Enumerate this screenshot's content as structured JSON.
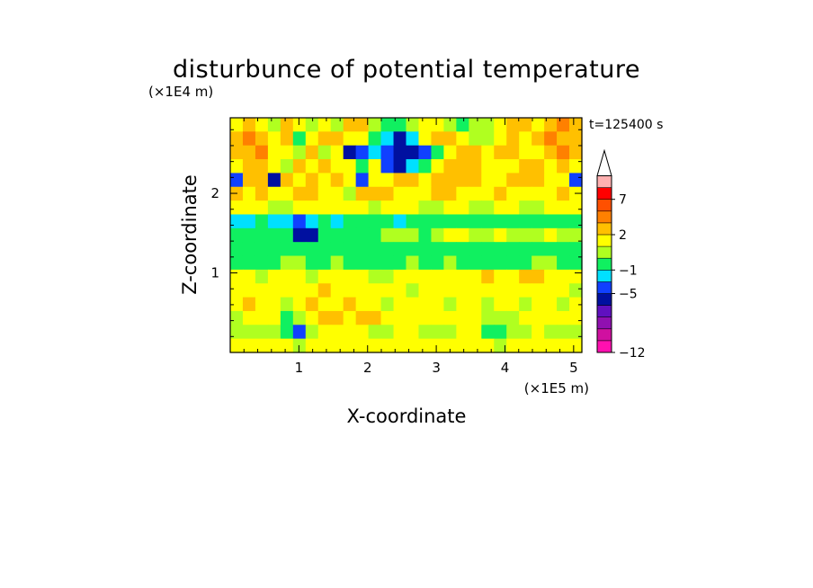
{
  "chart_data": {
    "type": "heatmap",
    "title": "disturbunce of potential temperature",
    "time_label": "t=125400 s",
    "xlabel": "X-coordinate",
    "ylabel": "Z-coordinate",
    "x_unit": "(×1E5 m)",
    "y_unit": "(×1E4 m)",
    "xlim": [
      0,
      5.12
    ],
    "ylim": [
      0,
      2.95
    ],
    "x_ticks": [
      {
        "value": 1,
        "label": "1"
      },
      {
        "value": 2,
        "label": "2"
      },
      {
        "value": 3,
        "label": "3"
      },
      {
        "value": 4,
        "label": "4"
      },
      {
        "value": 5,
        "label": "5"
      }
    ],
    "y_ticks": [
      {
        "value": 1,
        "label": "1"
      },
      {
        "value": 2,
        "label": "2"
      }
    ],
    "grid": false,
    "legend_position": "right",
    "colorbar": {
      "colors": [
        "#ff10b0",
        "#d010a0",
        "#9010b0",
        "#6010c0",
        "#0010a0",
        "#1040ff",
        "#00e0ff",
        "#10f060",
        "#b0ff20",
        "#ffff00",
        "#ffc000",
        "#ff8000",
        "#ff5000",
        "#ff0000",
        "#ffb0b0"
      ],
      "extend_max": true,
      "labels": [
        {
          "value": "−12",
          "index": 0
        },
        {
          "value": "−5",
          "index": 5
        },
        {
          "value": "−1",
          "index": 7
        },
        {
          "value": "2",
          "index": 10
        },
        {
          "value": "7",
          "index": 13
        }
      ]
    },
    "rows": [
      [
        "#ffff00",
        "#ffc000",
        "#ffff00",
        "#b0ff20",
        "#ffc000",
        "#ffff00",
        "#b0ff20",
        "#ffff00",
        "#b0ff20",
        "#ffc000",
        "#ffc000",
        "#b0ff20",
        "#10f060",
        "#10f060",
        "#b0ff20",
        "#ffff00",
        "#ffff00",
        "#b0ff20",
        "#10f060",
        "#b0ff20",
        "#b0ff20",
        "#ffff00",
        "#ffc000",
        "#ffc000",
        "#ffff00",
        "#ffc000",
        "#ff8000",
        "#ffc000"
      ],
      [
        "#ffc000",
        "#ff8000",
        "#ffc000",
        "#ffff00",
        "#ffc000",
        "#10f060",
        "#ffff00",
        "#ffc000",
        "#ffc000",
        "#ffff00",
        "#ffff00",
        "#10f060",
        "#00e0ff",
        "#0010a0",
        "#00e0ff",
        "#ffff00",
        "#ffc000",
        "#ffc000",
        "#ffff00",
        "#b0ff20",
        "#b0ff20",
        "#ffff00",
        "#ffc000",
        "#ffff00",
        "#ffc000",
        "#ff8000",
        "#ffc000",
        "#ffc000"
      ],
      [
        "#ffc000",
        "#ffc000",
        "#ff8000",
        "#ffff00",
        "#ffff00",
        "#b0ff20",
        "#ffc000",
        "#b0ff20",
        "#ffff00",
        "#0010a0",
        "#1040ff",
        "#00e0ff",
        "#1040ff",
        "#0010a0",
        "#0010a0",
        "#1040ff",
        "#10f060",
        "#ffff00",
        "#ffc000",
        "#ffc000",
        "#ffff00",
        "#ffc000",
        "#ffc000",
        "#ffff00",
        "#ffff00",
        "#ffc000",
        "#ff8000",
        "#ffc000"
      ],
      [
        "#ffff00",
        "#ffc000",
        "#ffc000",
        "#ffff00",
        "#b0ff20",
        "#ffc000",
        "#ffff00",
        "#ffc000",
        "#ffff00",
        "#ffff00",
        "#10f060",
        "#ffff00",
        "#1040ff",
        "#0010a0",
        "#00e0ff",
        "#10f060",
        "#ffff00",
        "#ffc000",
        "#ffc000",
        "#ffc000",
        "#ffff00",
        "#ffff00",
        "#ffff00",
        "#ffc000",
        "#ffc000",
        "#ffff00",
        "#ffc000",
        "#ffff00"
      ],
      [
        "#1040ff",
        "#ffc000",
        "#ffc000",
        "#0010a0",
        "#ffc000",
        "#ffff00",
        "#ffc000",
        "#ffff00",
        "#ffc000",
        "#ffff00",
        "#1040ff",
        "#ffff00",
        "#ffff00",
        "#ffc000",
        "#ffc000",
        "#ffff00",
        "#ffc000",
        "#ffc000",
        "#ffc000",
        "#ffc000",
        "#ffff00",
        "#ffff00",
        "#ffc000",
        "#ffc000",
        "#ffc000",
        "#ffff00",
        "#ffff00",
        "#1040ff"
      ],
      [
        "#ffc000",
        "#ffff00",
        "#ffc000",
        "#ffff00",
        "#ffff00",
        "#ffc000",
        "#ffc000",
        "#ffff00",
        "#ffff00",
        "#b0ff20",
        "#ffc000",
        "#ffc000",
        "#ffc000",
        "#ffff00",
        "#ffff00",
        "#ffff00",
        "#ffc000",
        "#ffc000",
        "#ffff00",
        "#ffff00",
        "#ffff00",
        "#ffc000",
        "#ffff00",
        "#ffff00",
        "#ffff00",
        "#ffff00",
        "#ffc000",
        "#ffff00"
      ],
      [
        "#ffff00",
        "#ffff00",
        "#ffff00",
        "#b0ff20",
        "#b0ff20",
        "#ffff00",
        "#ffff00",
        "#ffff00",
        "#ffff00",
        "#ffff00",
        "#ffff00",
        "#b0ff20",
        "#ffff00",
        "#ffff00",
        "#ffff00",
        "#b0ff20",
        "#b0ff20",
        "#ffff00",
        "#ffff00",
        "#b0ff20",
        "#b0ff20",
        "#ffff00",
        "#ffff00",
        "#b0ff20",
        "#b0ff20",
        "#ffff00",
        "#ffff00",
        "#ffff00"
      ],
      [
        "#00e0ff",
        "#00e0ff",
        "#10f060",
        "#00e0ff",
        "#00e0ff",
        "#1040ff",
        "#00e0ff",
        "#10f060",
        "#00e0ff",
        "#10f060",
        "#10f060",
        "#10f060",
        "#10f060",
        "#00e0ff",
        "#10f060",
        "#10f060",
        "#10f060",
        "#10f060",
        "#10f060",
        "#10f060",
        "#10f060",
        "#10f060",
        "#10f060",
        "#10f060",
        "#10f060",
        "#10f060",
        "#10f060",
        "#10f060"
      ],
      [
        "#10f060",
        "#10f060",
        "#10f060",
        "#10f060",
        "#10f060",
        "#0010a0",
        "#0010a0",
        "#10f060",
        "#10f060",
        "#10f060",
        "#10f060",
        "#10f060",
        "#b0ff20",
        "#b0ff20",
        "#b0ff20",
        "#10f060",
        "#b0ff20",
        "#ffff00",
        "#ffff00",
        "#b0ff20",
        "#b0ff20",
        "#ffff00",
        "#b0ff20",
        "#b0ff20",
        "#b0ff20",
        "#ffff00",
        "#b0ff20",
        "#b0ff20"
      ],
      [
        "#10f060",
        "#10f060",
        "#10f060",
        "#10f060",
        "#10f060",
        "#10f060",
        "#10f060",
        "#10f060",
        "#10f060",
        "#10f060",
        "#10f060",
        "#10f060",
        "#10f060",
        "#10f060",
        "#10f060",
        "#10f060",
        "#10f060",
        "#10f060",
        "#10f060",
        "#10f060",
        "#10f060",
        "#10f060",
        "#10f060",
        "#10f060",
        "#10f060",
        "#10f060",
        "#10f060",
        "#10f060"
      ],
      [
        "#10f060",
        "#10f060",
        "#10f060",
        "#10f060",
        "#b0ff20",
        "#b0ff20",
        "#10f060",
        "#10f060",
        "#b0ff20",
        "#10f060",
        "#10f060",
        "#10f060",
        "#10f060",
        "#10f060",
        "#b0ff20",
        "#10f060",
        "#10f060",
        "#b0ff20",
        "#10f060",
        "#10f060",
        "#10f060",
        "#10f060",
        "#10f060",
        "#10f060",
        "#b0ff20",
        "#b0ff20",
        "#10f060",
        "#10f060"
      ],
      [
        "#ffff00",
        "#ffff00",
        "#b0ff20",
        "#ffff00",
        "#ffff00",
        "#ffff00",
        "#b0ff20",
        "#ffff00",
        "#ffff00",
        "#ffff00",
        "#ffff00",
        "#b0ff20",
        "#b0ff20",
        "#ffff00",
        "#ffff00",
        "#ffff00",
        "#ffff00",
        "#ffff00",
        "#ffff00",
        "#ffff00",
        "#ffc000",
        "#ffff00",
        "#ffff00",
        "#ffc000",
        "#ffc000",
        "#ffff00",
        "#ffff00",
        "#ffff00"
      ],
      [
        "#ffff00",
        "#ffff00",
        "#ffff00",
        "#ffff00",
        "#ffff00",
        "#ffff00",
        "#ffff00",
        "#ffc000",
        "#ffff00",
        "#ffff00",
        "#ffff00",
        "#ffff00",
        "#ffff00",
        "#ffff00",
        "#b0ff20",
        "#ffff00",
        "#ffff00",
        "#ffff00",
        "#ffff00",
        "#ffff00",
        "#ffff00",
        "#ffff00",
        "#ffff00",
        "#ffff00",
        "#ffff00",
        "#ffff00",
        "#ffff00",
        "#b0ff20"
      ],
      [
        "#ffff00",
        "#ffc000",
        "#ffff00",
        "#ffff00",
        "#b0ff20",
        "#ffff00",
        "#ffc000",
        "#ffff00",
        "#ffff00",
        "#ffc000",
        "#ffff00",
        "#ffff00",
        "#b0ff20",
        "#ffff00",
        "#ffff00",
        "#ffff00",
        "#ffff00",
        "#b0ff20",
        "#ffff00",
        "#ffff00",
        "#b0ff20",
        "#ffff00",
        "#ffff00",
        "#b0ff20",
        "#ffff00",
        "#ffff00",
        "#b0ff20",
        "#ffff00"
      ],
      [
        "#b0ff20",
        "#ffff00",
        "#ffff00",
        "#ffff00",
        "#10f060",
        "#b0ff20",
        "#ffff00",
        "#ffc000",
        "#ffc000",
        "#ffff00",
        "#ffc000",
        "#ffc000",
        "#ffff00",
        "#ffff00",
        "#ffff00",
        "#ffff00",
        "#ffff00",
        "#ffff00",
        "#ffff00",
        "#ffff00",
        "#b0ff20",
        "#b0ff20",
        "#b0ff20",
        "#ffff00",
        "#ffff00",
        "#ffff00",
        "#ffff00",
        "#ffff00"
      ],
      [
        "#b0ff20",
        "#b0ff20",
        "#b0ff20",
        "#b0ff20",
        "#10f060",
        "#1040ff",
        "#b0ff20",
        "#ffff00",
        "#ffff00",
        "#ffff00",
        "#ffff00",
        "#b0ff20",
        "#b0ff20",
        "#ffff00",
        "#ffff00",
        "#b0ff20",
        "#b0ff20",
        "#b0ff20",
        "#ffff00",
        "#ffff00",
        "#10f060",
        "#10f060",
        "#b0ff20",
        "#b0ff20",
        "#ffff00",
        "#b0ff20",
        "#b0ff20",
        "#b0ff20"
      ],
      [
        "#ffff00",
        "#ffff00",
        "#ffff00",
        "#ffff00",
        "#ffff00",
        "#b0ff20",
        "#ffff00",
        "#ffff00",
        "#ffff00",
        "#ffff00",
        "#ffff00",
        "#ffff00",
        "#ffff00",
        "#ffff00",
        "#ffff00",
        "#ffff00",
        "#ffff00",
        "#ffff00",
        "#ffff00",
        "#ffff00",
        "#ffff00",
        "#b0ff20",
        "#ffff00",
        "#ffff00",
        "#ffff00",
        "#ffff00",
        "#ffff00",
        "#ffff00"
      ]
    ]
  }
}
